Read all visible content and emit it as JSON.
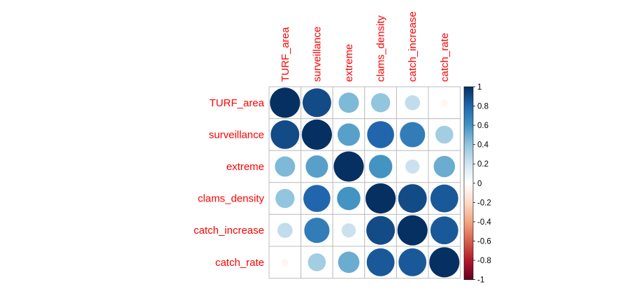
{
  "chart_data": {
    "type": "heatmap",
    "style": "correlation-circles",
    "variables": [
      "TURF_area",
      "surveillance",
      "extreme",
      "clams_density",
      "catch_increase",
      "catch_rate"
    ],
    "matrix": [
      [
        1.0,
        0.9,
        0.45,
        0.4,
        0.25,
        -0.05
      ],
      [
        0.9,
        1.0,
        0.55,
        0.8,
        0.7,
        0.35
      ],
      [
        0.45,
        0.55,
        1.0,
        0.6,
        0.22,
        0.5
      ],
      [
        0.4,
        0.8,
        0.6,
        1.0,
        0.9,
        0.85
      ],
      [
        0.25,
        0.7,
        0.22,
        0.9,
        1.0,
        0.85
      ],
      [
        -0.05,
        0.35,
        0.5,
        0.85,
        0.85,
        1.0
      ]
    ],
    "colorbar": {
      "min": -1,
      "max": 1,
      "ticks": [
        "1",
        "0.8",
        "0.6",
        "0.4",
        "0.2",
        "0",
        "-0.2",
        "-0.4",
        "-0.6",
        "-0.8",
        "-1"
      ],
      "colors": [
        "#67001F",
        "#B2182B",
        "#D6604D",
        "#F4A582",
        "#FDDBC7",
        "#FFFFFF",
        "#D1E5F0",
        "#92C5DE",
        "#4393C3",
        "#2166AC",
        "#053061"
      ]
    },
    "label_color": "#ff0000",
    "grid_color": "#bebebe",
    "grid": true,
    "legend_position": "right"
  }
}
